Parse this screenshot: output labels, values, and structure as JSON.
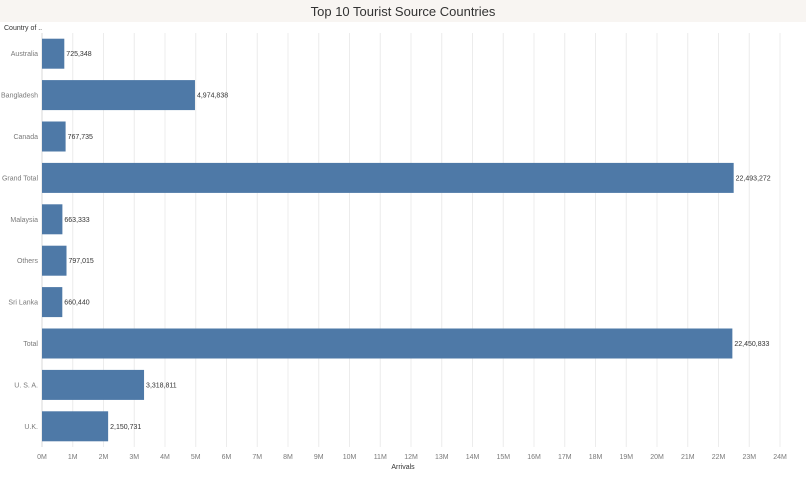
{
  "title": "Top 10 Tourist Source Countries",
  "row_header": "Country of ..",
  "bar_color": "#4e79a7",
  "chart_data": {
    "type": "bar",
    "orientation": "horizontal",
    "title": "Top 10 Tourist Source Countries",
    "xlabel": "Arrivals",
    "ylabel": "Country of ..",
    "xlim": [
      0,
      24000000
    ],
    "grid": true,
    "categories": [
      "Australia",
      "Bangladesh",
      "Canada",
      "Grand Total",
      "Malaysia",
      "Others",
      "Sri Lanka",
      "Total",
      "U. S. A.",
      "U.K."
    ],
    "values": [
      725348,
      4974838,
      767735,
      22493272,
      663333,
      797015,
      660440,
      22450833,
      3318811,
      2150731
    ],
    "value_labels": [
      "725,348",
      "4,974,838",
      "767,735",
      "22,493,272",
      "663,333",
      "797,015",
      "660,440",
      "22,450,833",
      "3,318,811",
      "2,150,731"
    ],
    "ticks": [
      0,
      1000000,
      2000000,
      3000000,
      4000000,
      5000000,
      6000000,
      7000000,
      8000000,
      9000000,
      10000000,
      11000000,
      12000000,
      13000000,
      14000000,
      15000000,
      16000000,
      17000000,
      18000000,
      19000000,
      20000000,
      21000000,
      22000000,
      23000000,
      24000000
    ],
    "tick_labels": [
      "0M",
      "1M",
      "2M",
      "3M",
      "4M",
      "5M",
      "6M",
      "7M",
      "8M",
      "9M",
      "10M",
      "11M",
      "12M",
      "13M",
      "14M",
      "15M",
      "16M",
      "17M",
      "18M",
      "19M",
      "20M",
      "21M",
      "22M",
      "23M",
      "24M"
    ]
  }
}
